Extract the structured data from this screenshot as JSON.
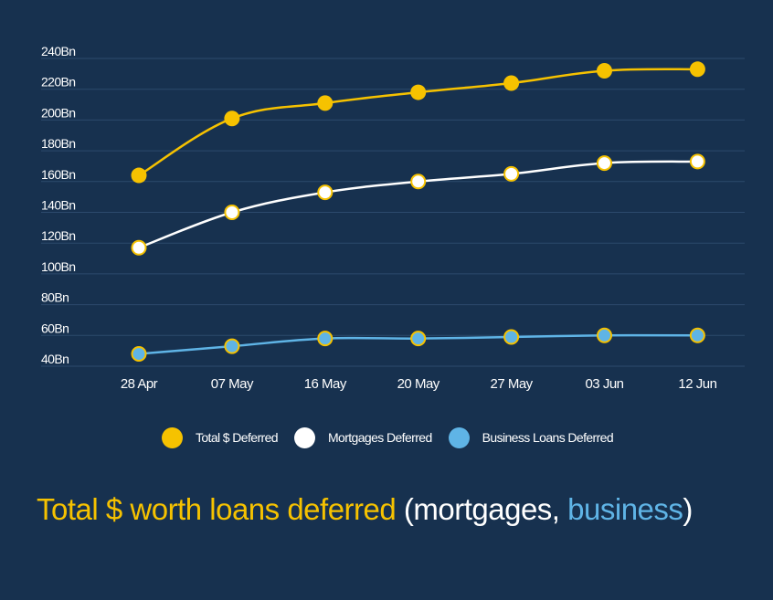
{
  "chart_data": {
    "type": "line",
    "categories": [
      "28 Apr",
      "07 May",
      "16 May",
      "20 May",
      "27 May",
      "03 Jun",
      "12 Jun"
    ],
    "y_ticks": [
      "40Bn",
      "60Bn",
      "80Bn",
      "100Bn",
      "120Bn",
      "140Bn",
      "160Bn",
      "180Bn",
      "200Bn",
      "220Bn",
      "240Bn"
    ],
    "ylim": [
      40,
      240
    ],
    "grid": true,
    "series": [
      {
        "name": "Total $ Deferred",
        "color": "#f6c200",
        "fill": "#f6c200",
        "values": [
          164,
          201,
          211,
          218,
          224,
          232,
          233
        ]
      },
      {
        "name": "Mortgages Deferred",
        "color": "#ffffff",
        "fill": "#ffffff",
        "values": [
          117,
          140,
          153,
          160,
          165,
          172,
          173
        ]
      },
      {
        "name": "Business Loans Deferred",
        "color": "#5fb4e6",
        "fill": "#5fb4e6",
        "values": [
          48,
          53,
          58,
          58,
          59,
          60,
          60
        ]
      }
    ],
    "legend_position": "bottom"
  },
  "footer": {
    "part_total": "Total $ worth loans deferred",
    "part_open": " (mortgages, ",
    "part_business": "business",
    "part_close": ")"
  },
  "colors": {
    "background": "#17314f",
    "gridline": "#2c4a6c",
    "marker_outline": "#f6c200",
    "total_text": "#f6c200",
    "business_text": "#5fb4e6",
    "plain_text": "#ffffff"
  }
}
